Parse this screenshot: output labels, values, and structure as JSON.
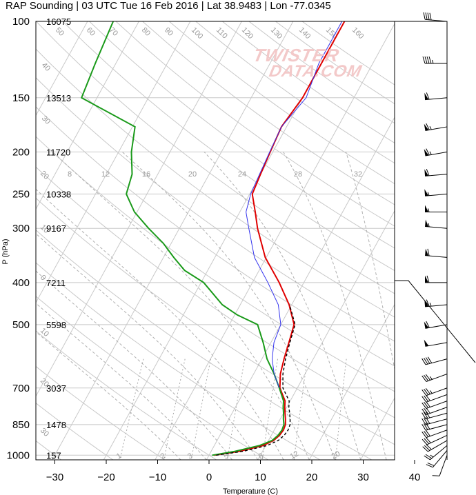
{
  "title": "RAP Sounding | 03 UTC Tue 16 Feb 2016 | Lat 38.9483 | Lon -77.0345",
  "watermark": [
    "TWISTER",
    "DATA.COM"
  ],
  "chart_data": {
    "type": "line",
    "xlabel": "Temperature (C)",
    "ylabel": "P (hPa)",
    "xlim": [
      -34,
      47
    ],
    "ylim": [
      1025,
      100
    ],
    "y_scale": "log",
    "x_ticks": [
      -30,
      -20,
      -10,
      0,
      10,
      20,
      30,
      40
    ],
    "x_tick_labels": [
      "−30",
      "−20",
      "−10",
      "0",
      "10",
      "20",
      "30",
      "40"
    ],
    "pressure_levels": [
      100,
      150,
      200,
      250,
      300,
      400,
      500,
      700,
      850,
      1000
    ],
    "pressure_labels": [
      "100",
      "150",
      "200",
      "250",
      "300",
      "400",
      "500",
      "700",
      "850",
      "1000"
    ],
    "heights": [
      "16075",
      "13513",
      "11720",
      "10338",
      "9167",
      "7211",
      "5598",
      "3037",
      "1478",
      "157"
    ],
    "mixing_ratio_labels": [
      "1",
      "2",
      "3",
      "5",
      "8",
      "12",
      "20"
    ],
    "upper_labels": [
      "8",
      "12",
      "16",
      "20",
      "24",
      "28",
      "32"
    ],
    "series": [
      {
        "role": "temperature",
        "color": "#e00000",
        "p": [
          1000,
          980,
          950,
          925,
          900,
          875,
          850,
          825,
          800,
          775,
          750,
          700,
          650,
          600,
          550,
          500,
          450,
          400,
          350,
          300,
          275,
          250,
          225,
          200,
          175,
          150,
          125,
          100
        ],
        "t": [
          1.0,
          5.5,
          9.5,
          11.0,
          11.6,
          11.8,
          11.6,
          11.0,
          10.3,
          9.6,
          9.0,
          6.6,
          5.2,
          4.3,
          3.5,
          2.6,
          -0.5,
          -4.8,
          -10.2,
          -14.8,
          -17.0,
          -19.5,
          -20.0,
          -20.5,
          -21.0,
          -20.0,
          -20.0,
          -20.0
        ]
      },
      {
        "role": "dewpoint",
        "color": "#1a9a1a",
        "p": [
          1000,
          980,
          950,
          925,
          900,
          875,
          850,
          825,
          800,
          775,
          750,
          700,
          650,
          600,
          550,
          500,
          475,
          450,
          400,
          375,
          350,
          325,
          300,
          275,
          250,
          225,
          200,
          175,
          150,
          125,
          100
        ],
        "t": [
          0.6,
          4.6,
          8.8,
          10.7,
          11.3,
          11.5,
          11.3,
          10.6,
          10.0,
          9.3,
          8.7,
          6.5,
          4.0,
          1.0,
          -1.5,
          -4.5,
          -9.5,
          -13.5,
          -19.5,
          -24.5,
          -28.0,
          -31.5,
          -36.0,
          -40.5,
          -44.0,
          -45.0,
          -47.5,
          -49.5,
          -63.0,
          -64.0,
          -65.0
        ]
      },
      {
        "role": "virtual-temperature",
        "color": "#000000",
        "dash": "dashed",
        "p": [
          1000,
          980,
          950,
          925,
          900,
          875,
          850,
          825,
          800,
          775,
          750,
          700,
          650,
          600,
          550,
          500,
          450
        ],
        "t": [
          1.4,
          6.2,
          10.3,
          11.9,
          12.5,
          12.7,
          12.5,
          11.9,
          11.2,
          10.4,
          9.8,
          7.2,
          5.7,
          4.6,
          3.7,
          2.8,
          -0.4
        ]
      },
      {
        "role": "parcel",
        "color": "#3333ee",
        "p": [
          700,
          650,
          600,
          550,
          500,
          450,
          400,
          350,
          300,
          275,
          250,
          225,
          200,
          175,
          150,
          125,
          100
        ],
        "t": [
          6.5,
          4.0,
          2.0,
          0.6,
          0.0,
          -2.6,
          -7.0,
          -12.3,
          -16.5,
          -18.8,
          -19.8,
          -20.2,
          -20.6,
          -21.0,
          -19.3,
          -20.5,
          -20.5
        ]
      }
    ],
    "wind_barbs": [
      {
        "p": 1000,
        "dir": 200,
        "kt": 10
      },
      {
        "p": 975,
        "dir": 220,
        "kt": 20
      },
      {
        "p": 950,
        "dir": 230,
        "kt": 25
      },
      {
        "p": 925,
        "dir": 240,
        "kt": 30
      },
      {
        "p": 900,
        "dir": 245,
        "kt": 30
      },
      {
        "p": 875,
        "dir": 250,
        "kt": 30
      },
      {
        "p": 850,
        "dir": 255,
        "kt": 30
      },
      {
        "p": 825,
        "dir": 255,
        "kt": 30
      },
      {
        "p": 800,
        "dir": 255,
        "kt": 30
      },
      {
        "p": 775,
        "dir": 250,
        "kt": 30
      },
      {
        "p": 750,
        "dir": 250,
        "kt": 30
      },
      {
        "p": 725,
        "dir": 250,
        "kt": 30
      },
      {
        "p": 700,
        "dir": 250,
        "kt": 35
      },
      {
        "p": 650,
        "dir": 250,
        "kt": 35
      },
      {
        "p": 600,
        "dir": 255,
        "kt": 40
      },
      {
        "p": 550,
        "dir": 260,
        "kt": 50
      },
      {
        "p": 500,
        "dir": 260,
        "kt": 60
      },
      {
        "p": 450,
        "dir": 265,
        "kt": 65
      },
      {
        "p": 400,
        "dir": 270,
        "kt": 60
      },
      {
        "p": 350,
        "dir": 275,
        "kt": 60
      },
      {
        "p": 300,
        "dir": 275,
        "kt": 55
      },
      {
        "p": 275,
        "dir": 270,
        "kt": 55
      },
      {
        "p": 250,
        "dir": 265,
        "kt": 55
      },
      {
        "p": 225,
        "dir": 265,
        "kt": 60
      },
      {
        "p": 200,
        "dir": 260,
        "kt": 65
      },
      {
        "p": 175,
        "dir": 260,
        "kt": 65
      },
      {
        "p": 150,
        "dir": 265,
        "kt": 60
      },
      {
        "p": 125,
        "dir": 270,
        "kt": 45
      },
      {
        "p": 100,
        "dir": 275,
        "kt": 40
      }
    ]
  }
}
